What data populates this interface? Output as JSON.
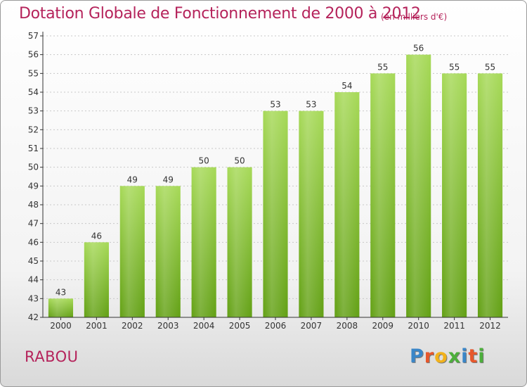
{
  "title": "Dotation Globale de Fonctionnement de 2000 à 2012",
  "subtitle": "(en milliers d'€)",
  "commune": "RABOU",
  "logo": {
    "text": "Proxiti",
    "letters": [
      "P",
      "r",
      "o",
      "x",
      "i",
      "t",
      "i"
    ],
    "colors": [
      "#3a86c8",
      "#e7572b",
      "#f2b21b",
      "#4caf3b",
      "#3a86c8",
      "#e7572b",
      "#4caf3b"
    ]
  },
  "colors": {
    "bar_top": "#a6d957",
    "bar_bottom": "#62a014",
    "text": "#b5235b",
    "axis": "#333333"
  },
  "chart_data": {
    "type": "bar",
    "categories": [
      "2000",
      "2001",
      "2002",
      "2003",
      "2004",
      "2005",
      "2006",
      "2007",
      "2008",
      "2009",
      "2010",
      "2011",
      "2012"
    ],
    "values": [
      43,
      46,
      49,
      49,
      50,
      50,
      53,
      53,
      54,
      55,
      56,
      55,
      55
    ],
    "ylim": [
      42,
      57
    ],
    "yticks": [
      42,
      43,
      44,
      45,
      46,
      47,
      48,
      49,
      50,
      51,
      52,
      53,
      54,
      55,
      56,
      57
    ],
    "grid": true,
    "xlabel": "",
    "ylabel": ""
  }
}
